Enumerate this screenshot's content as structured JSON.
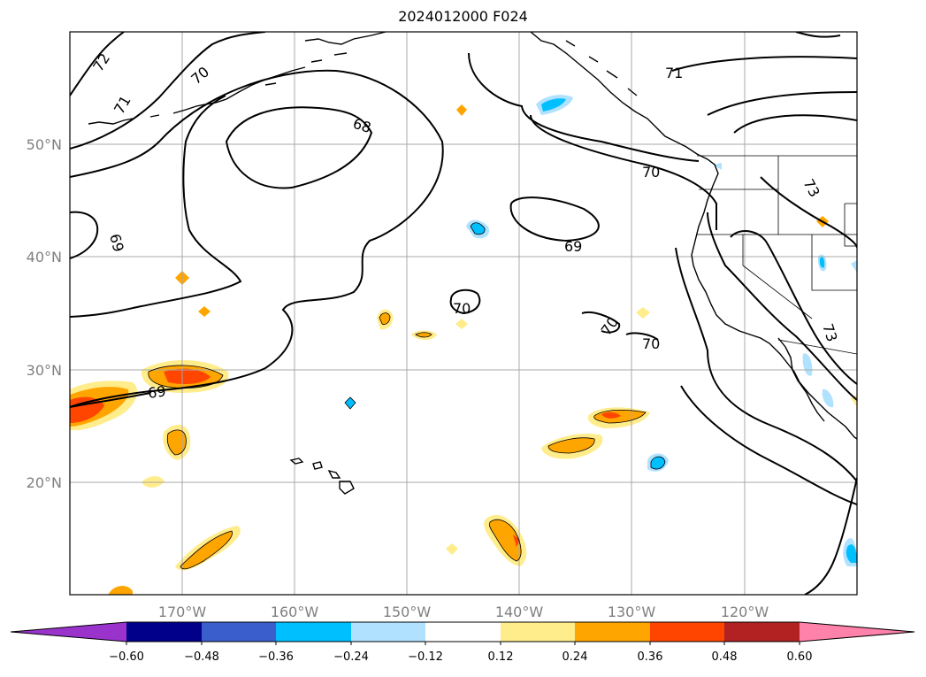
{
  "title": "2024012000 F024",
  "map": {
    "lat_range": [
      10,
      60
    ],
    "lon_range": [
      -180,
      -110
    ],
    "grid": true,
    "lat_ticks": [
      {
        "v": 20,
        "label": "20°N"
      },
      {
        "v": 30,
        "label": "30°N"
      },
      {
        "v": 40,
        "label": "40°N"
      },
      {
        "v": 50,
        "label": "50°N"
      }
    ],
    "lon_ticks": [
      {
        "v": -170,
        "label": "170°W"
      },
      {
        "v": -160,
        "label": "160°W"
      },
      {
        "v": -150,
        "label": "150°W"
      },
      {
        "v": -140,
        "label": "140°W"
      },
      {
        "v": -130,
        "label": "130°W"
      },
      {
        "v": -120,
        "label": "120°W"
      }
    ],
    "contour_labels": [
      "72",
      "71",
      "70",
      "68",
      "71",
      "69",
      "70",
      "69",
      "70",
      "70",
      "73",
      "69",
      "70",
      "73"
    ]
  },
  "colorbar": {
    "colors": [
      "#9933cc",
      "#00008b",
      "#3a5fcd",
      "#00bfff",
      "#b0e2ff",
      "#ffffff",
      "#ffec8b",
      "#ffa500",
      "#ff4500",
      "#b22222",
      "#ff82ab"
    ],
    "ticks": [
      "−0.60",
      "−0.48",
      "−0.36",
      "−0.24",
      "−0.12",
      "0.12",
      "0.24",
      "0.36",
      "0.48",
      "0.60"
    ]
  }
}
